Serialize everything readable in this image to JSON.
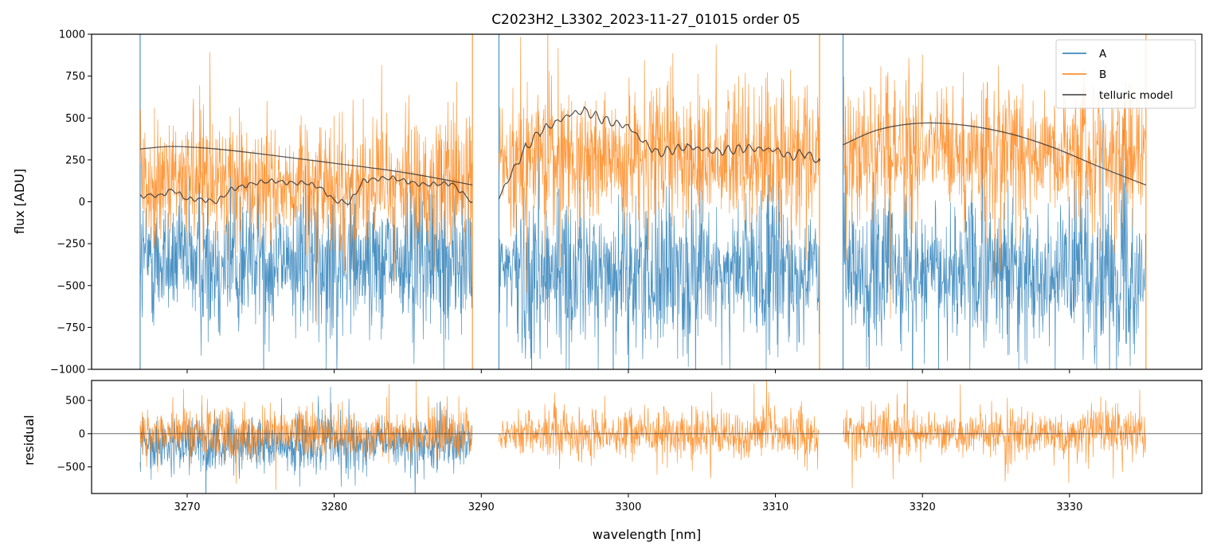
{
  "chart_data": [
    {
      "type": "line",
      "name": "main",
      "title": "C2023H2_L3302_2023-11-27_01015  order 05",
      "xlabel": "",
      "ylabel": "flux [ADU]",
      "xlim": [
        3263.5,
        3339.0
      ],
      "ylim": [
        -1000,
        1000
      ],
      "yticks": [
        -1000,
        -750,
        -500,
        -250,
        0,
        250,
        500,
        750,
        1000
      ],
      "yticklabels": [
        "−1000",
        "−750",
        "−500",
        "−250",
        "0",
        "250",
        "500",
        "750",
        "1000"
      ],
      "xticks": [
        3270,
        3280,
        3290,
        3300,
        3310,
        3320,
        3330
      ],
      "segments": [
        {
          "start": 3266.8,
          "end": 3289.4,
          "a_center": -350,
          "b_center": 110
        },
        {
          "start": 3291.2,
          "end": 3313.0,
          "a_center": -420,
          "b_center": 260
        },
        {
          "start": 3314.6,
          "end": 3335.2,
          "a_center": -420,
          "b_center": 300
        }
      ],
      "series": [
        {
          "name": "A",
          "color": "#1f77b4",
          "noise": 260
        },
        {
          "name": "B",
          "color": "#ff7f0e",
          "noise": 230
        },
        {
          "name": "telluric model",
          "color": "#3a3a3a"
        }
      ],
      "telluric_model": {
        "segment_1_smooth": [
          [
            3266.8,
            315
          ],
          [
            3269,
            330
          ],
          [
            3272,
            315
          ],
          [
            3276,
            275
          ],
          [
            3280,
            230
          ],
          [
            3284,
            185
          ],
          [
            3287,
            140
          ],
          [
            3289.4,
            100
          ]
        ],
        "segment_1_lines": [
          [
            3266.8,
            25
          ],
          [
            3268,
            40
          ],
          [
            3269,
            75
          ],
          [
            3270,
            10
          ],
          [
            3272,
            5
          ],
          [
            3273,
            80
          ],
          [
            3274,
            95
          ],
          [
            3276,
            125
          ],
          [
            3278,
            115
          ],
          [
            3279,
            80
          ],
          [
            3280,
            5
          ],
          [
            3281,
            0
          ],
          [
            3282,
            130
          ],
          [
            3284,
            135
          ],
          [
            3286,
            110
          ],
          [
            3288,
            100
          ],
          [
            3289.4,
            0
          ]
        ],
        "segment_2": [
          [
            3291.2,
            25
          ],
          [
            3292,
            160
          ],
          [
            3293,
            320
          ],
          [
            3294,
            420
          ],
          [
            3295,
            470
          ],
          [
            3296,
            520
          ],
          [
            3297,
            545
          ],
          [
            3298,
            500
          ],
          [
            3299,
            470
          ],
          [
            3300,
            450
          ],
          [
            3301,
            360
          ],
          [
            3302,
            290
          ],
          [
            3304,
            330
          ],
          [
            3306,
            300
          ],
          [
            3308,
            320
          ],
          [
            3310,
            310
          ],
          [
            3311,
            270
          ],
          [
            3312,
            290
          ],
          [
            3313,
            240
          ]
        ],
        "segment_3": [
          [
            3314.6,
            340
          ],
          [
            3317,
            430
          ],
          [
            3320,
            470
          ],
          [
            3323,
            455
          ],
          [
            3326,
            405
          ],
          [
            3329,
            320
          ],
          [
            3332,
            210
          ],
          [
            3335.2,
            100
          ]
        ]
      },
      "legend": {
        "entries": [
          "A",
          "B",
          "telluric model"
        ],
        "position": "top-right"
      }
    },
    {
      "type": "line",
      "name": "residual",
      "xlabel": "wavelength [nm]",
      "ylabel": "residual",
      "xlim": [
        3263.5,
        3339.0
      ],
      "ylim": [
        -900,
        800
      ],
      "yticks": [
        -500,
        0,
        500
      ],
      "yticklabels": [
        "−500",
        "0",
        "500"
      ],
      "xticks": [
        3270,
        3280,
        3290,
        3300,
        3310,
        3320,
        3330
      ],
      "xticklabels": [
        "3270",
        "3280",
        "3290",
        "3300",
        "3310",
        "3320",
        "3330"
      ],
      "reference_line": 0,
      "series": [
        {
          "name": "A",
          "color": "#1f77b4",
          "range": [
            3266.8,
            3289.4
          ],
          "center": -150,
          "noise": 260
        },
        {
          "name": "B",
          "color": "#ff7f0e",
          "ranges": [
            [
              3266.8,
              3289.4
            ],
            [
              3291.2,
              3313.0
            ],
            [
              3314.6,
              3335.2
            ]
          ],
          "center": 0,
          "noise": 210
        }
      ]
    }
  ]
}
